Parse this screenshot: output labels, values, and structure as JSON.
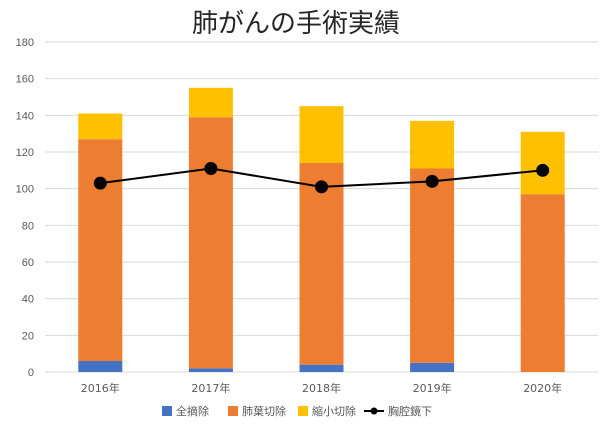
{
  "chart_data": {
    "type": "bar",
    "stacked": true,
    "title": "肺がんの手術実績",
    "categories": [
      "2016年",
      "2017年",
      "2018年",
      "2019年",
      "2020年"
    ],
    "ylim": [
      0,
      180
    ],
    "yticks": [
      0,
      20,
      40,
      60,
      80,
      100,
      120,
      140,
      160,
      180
    ],
    "grid": true,
    "legend_position": "bottom",
    "series": [
      {
        "name": "全摘除",
        "type": "bar",
        "color": "#4472c4",
        "values": [
          6,
          2,
          4,
          5,
          0
        ]
      },
      {
        "name": "肺葉切除",
        "type": "bar",
        "color": "#ed7d31",
        "values": [
          121,
          137,
          110,
          106,
          97
        ]
      },
      {
        "name": "縮小切除",
        "type": "bar",
        "color": "#ffc000",
        "values": [
          14,
          16,
          31,
          26,
          34
        ]
      },
      {
        "name": "胸腔鏡下",
        "type": "line",
        "color": "#000000",
        "values": [
          103,
          111,
          101,
          104,
          110
        ]
      }
    ]
  }
}
